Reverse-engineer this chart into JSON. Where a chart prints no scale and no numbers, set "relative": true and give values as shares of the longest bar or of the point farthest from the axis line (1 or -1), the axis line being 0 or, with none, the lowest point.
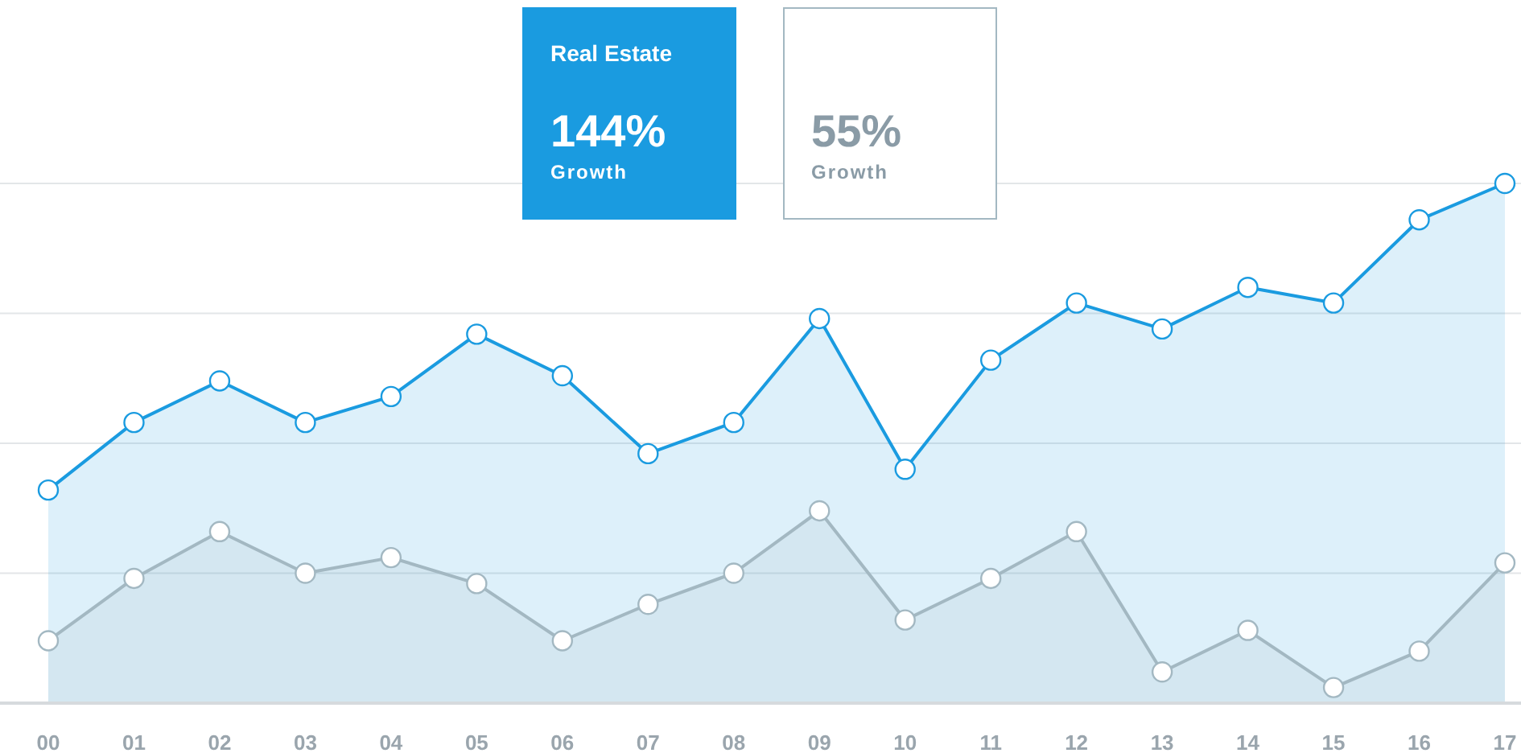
{
  "chart_data": {
    "type": "area",
    "relative": true,
    "grid": true,
    "legend": "top",
    "marker": "circle",
    "line_style": "solid",
    "categories": [
      "00",
      "01",
      "02",
      "03",
      "04",
      "05",
      "06",
      "07",
      "08",
      "09",
      "10",
      "11",
      "12",
      "13",
      "14",
      "15",
      "16",
      "17"
    ],
    "series": [
      {
        "name": "Real Estate",
        "color": "#1a9be0",
        "values": [
          0.41,
          0.54,
          0.62,
          0.54,
          0.59,
          0.71,
          0.63,
          0.48,
          0.54,
          0.74,
          0.45,
          0.66,
          0.77,
          0.72,
          0.8,
          0.77,
          0.93,
          1
        ]
      },
      {
        "color": "#a3b8c2",
        "values": [
          0.12,
          0.24,
          0.33,
          0.25,
          0.28,
          0.23,
          0.12,
          0.19,
          0.25,
          0.37,
          0.16,
          0.24,
          0.33,
          0.06,
          0.14,
          0.03,
          0.1,
          0.27
        ]
      }
    ],
    "annotations": [
      "144%",
      "Growth",
      "55%",
      "Growth"
    ]
  }
}
